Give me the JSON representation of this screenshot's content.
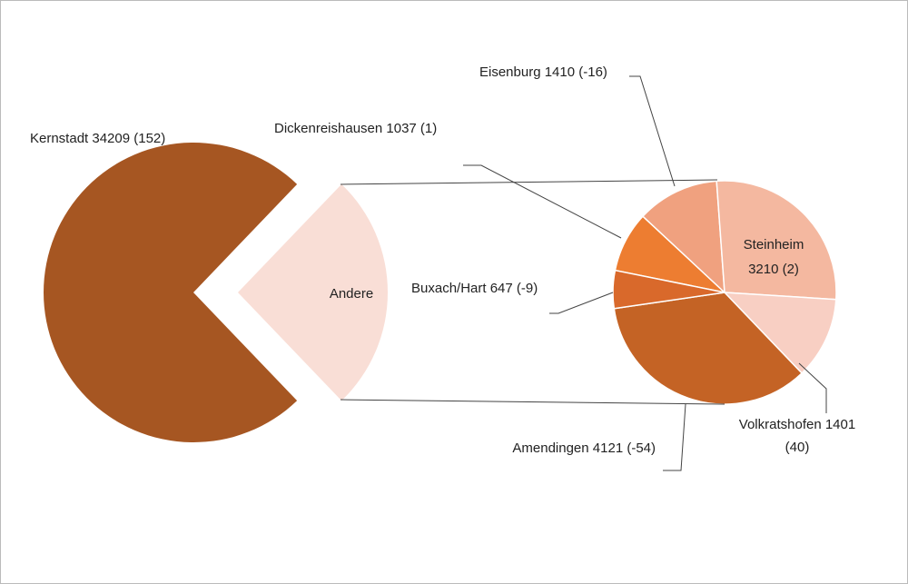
{
  "chart_data": {
    "type": "pie-of-pie",
    "values": [
      34209,
      1037,
      1410,
      3210,
      1401,
      4121,
      647
    ],
    "value_labels": [
      [
        "Kernstadt 34209 (152)"
      ],
      [
        "Dickenreishausen 1037 (1)"
      ],
      [
        "Eisenburg 1410 (-16)"
      ],
      [
        "Steinheim",
        "3210 (2)"
      ],
      [
        "Volkratshofen 1401",
        "(40)"
      ],
      [
        "Amendingen 4121 (-54)"
      ],
      [
        "Buxach/Hart 647 (-9)"
      ]
    ],
    "colors": [
      "#a65622",
      "#ed7d31",
      "#f0a17f",
      "#f4b8a0",
      "#f8cfc3",
      "#c46325",
      "#d9692b"
    ],
    "other_label": "Andere",
    "other_color": "#f9ded6"
  }
}
